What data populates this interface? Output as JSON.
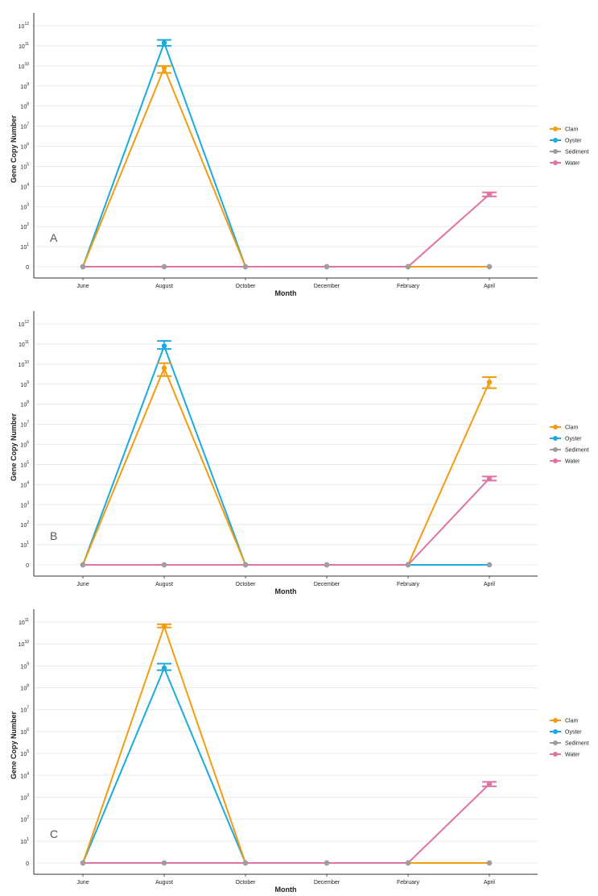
{
  "colors": {
    "Clam": "#F39C12",
    "Oyster": "#1BA9DF",
    "Sediment": "#9E9E9E",
    "Water": "#E072A4"
  },
  "chart_data": [
    {
      "type": "line",
      "panel_label": "A",
      "xlabel": "Month",
      "ylabel": "Gene Copy Number",
      "categories": [
        "June",
        "August",
        "October",
        "December",
        "February",
        "April"
      ],
      "y_ticks": [
        {
          "exp": null,
          "label": "0"
        },
        {
          "exp": 1,
          "label": "10"
        },
        {
          "exp": 2,
          "label": "10"
        },
        {
          "exp": 3,
          "label": "10"
        },
        {
          "exp": 4,
          "label": "10"
        },
        {
          "exp": 5,
          "label": "10"
        },
        {
          "exp": 6,
          "label": "10"
        },
        {
          "exp": 7,
          "label": "10"
        },
        {
          "exp": 8,
          "label": "10"
        },
        {
          "exp": 9,
          "label": "10"
        },
        {
          "exp": 10,
          "label": "10"
        },
        {
          "exp": 11,
          "label": "10"
        },
        {
          "exp": 12,
          "label": "10"
        }
      ],
      "series": [
        {
          "name": "Clam",
          "log10": [
            0,
            9.9,
            0,
            0,
            0,
            0
          ],
          "err_lo": [
            null,
            9.65,
            null,
            null,
            null,
            null
          ],
          "err_hi": [
            null,
            10.0,
            null,
            null,
            null,
            null
          ]
        },
        {
          "name": "Oyster",
          "log10": [
            0,
            11.15,
            0,
            0,
            0,
            0
          ],
          "err_lo": [
            null,
            11.0,
            null,
            null,
            null,
            null
          ],
          "err_hi": [
            null,
            11.3,
            null,
            null,
            null,
            null
          ]
        },
        {
          "name": "Sediment",
          "log10": [
            0,
            0,
            0,
            0,
            0,
            0
          ],
          "err_lo": [
            null,
            null,
            null,
            null,
            null,
            null
          ],
          "err_hi": [
            null,
            null,
            null,
            null,
            null,
            null
          ]
        },
        {
          "name": "Water",
          "log10": [
            0,
            0,
            0,
            0,
            0,
            3.6
          ],
          "err_lo": [
            null,
            null,
            null,
            null,
            null,
            3.5
          ],
          "err_hi": [
            null,
            null,
            null,
            null,
            null,
            3.7
          ]
        }
      ],
      "legend": [
        "Clam",
        "Oyster",
        "Sediment",
        "Water"
      ]
    },
    {
      "type": "line",
      "panel_label": "B",
      "xlabel": "Month",
      "ylabel": "Gene Copy Number",
      "categories": [
        "June",
        "August",
        "October",
        "December",
        "February",
        "April"
      ],
      "y_ticks": [
        {
          "exp": null,
          "label": "0"
        },
        {
          "exp": 1,
          "label": "10"
        },
        {
          "exp": 2,
          "label": "10"
        },
        {
          "exp": 3,
          "label": "10"
        },
        {
          "exp": 4,
          "label": "10"
        },
        {
          "exp": 5,
          "label": "10"
        },
        {
          "exp": 6,
          "label": "10"
        },
        {
          "exp": 7,
          "label": "10"
        },
        {
          "exp": 8,
          "label": "10"
        },
        {
          "exp": 9,
          "label": "10"
        },
        {
          "exp": 10,
          "label": "10"
        },
        {
          "exp": 11,
          "label": "10"
        },
        {
          "exp": 12,
          "label": "10"
        }
      ],
      "series": [
        {
          "name": "Clam",
          "log10": [
            0,
            9.8,
            0,
            0,
            0,
            9.1
          ],
          "err_lo": [
            null,
            9.4,
            null,
            null,
            null,
            8.8
          ],
          "err_hi": [
            null,
            10.05,
            null,
            null,
            null,
            9.35
          ]
        },
        {
          "name": "Oyster",
          "log10": [
            0,
            10.9,
            0,
            0,
            0,
            0
          ],
          "err_lo": [
            null,
            10.75,
            null,
            null,
            null,
            null
          ],
          "err_hi": [
            null,
            11.15,
            null,
            null,
            null,
            null
          ]
        },
        {
          "name": "Sediment",
          "log10": [
            0,
            0,
            0,
            0,
            0,
            0
          ],
          "err_lo": [
            null,
            null,
            null,
            null,
            null,
            null
          ],
          "err_hi": [
            null,
            null,
            null,
            null,
            null,
            null
          ]
        },
        {
          "name": "Water",
          "log10": [
            0,
            0,
            0,
            0,
            0,
            4.3
          ],
          "err_lo": [
            null,
            null,
            null,
            null,
            null,
            4.2
          ],
          "err_hi": [
            null,
            null,
            null,
            null,
            null,
            4.4
          ]
        }
      ],
      "legend": [
        "Clam",
        "Oyster",
        "Sediment",
        "Water"
      ]
    },
    {
      "type": "line",
      "panel_label": "C",
      "xlabel": "Month",
      "ylabel": "Gene Copy Number",
      "categories": [
        "June",
        "August",
        "October",
        "December",
        "February",
        "April"
      ],
      "y_ticks": [
        {
          "exp": null,
          "label": "0"
        },
        {
          "exp": 1,
          "label": "10"
        },
        {
          "exp": 2,
          "label": "10"
        },
        {
          "exp": 3,
          "label": "10"
        },
        {
          "exp": 4,
          "label": "10"
        },
        {
          "exp": 5,
          "label": "10"
        },
        {
          "exp": 6,
          "label": "10"
        },
        {
          "exp": 7,
          "label": "10"
        },
        {
          "exp": 8,
          "label": "10"
        },
        {
          "exp": 9,
          "label": "10"
        },
        {
          "exp": 10,
          "label": "10"
        },
        {
          "exp": 11,
          "label": "10"
        }
      ],
      "series": [
        {
          "name": "Clam",
          "log10": [
            0,
            10.8,
            0,
            0,
            0,
            0
          ],
          "err_lo": [
            null,
            10.75,
            null,
            null,
            null,
            null
          ],
          "err_hi": [
            null,
            10.9,
            null,
            null,
            null,
            null
          ]
        },
        {
          "name": "Oyster",
          "log10": [
            0,
            8.9,
            0,
            0,
            0,
            0
          ],
          "err_lo": [
            null,
            8.8,
            null,
            null,
            null,
            null
          ],
          "err_hi": [
            null,
            9.1,
            null,
            null,
            null,
            null
          ]
        },
        {
          "name": "Sediment",
          "log10": [
            0,
            0,
            0,
            0,
            0,
            0
          ],
          "err_lo": [
            null,
            null,
            null,
            null,
            null,
            null
          ],
          "err_hi": [
            null,
            null,
            null,
            null,
            null,
            null
          ]
        },
        {
          "name": "Water",
          "log10": [
            0,
            0,
            0,
            0,
            0,
            3.6
          ],
          "err_lo": [
            null,
            null,
            null,
            null,
            null,
            3.5
          ],
          "err_hi": [
            null,
            null,
            null,
            null,
            null,
            3.7
          ]
        }
      ],
      "legend": [
        "Clam",
        "Oyster",
        "Sediment",
        "Water"
      ]
    }
  ]
}
